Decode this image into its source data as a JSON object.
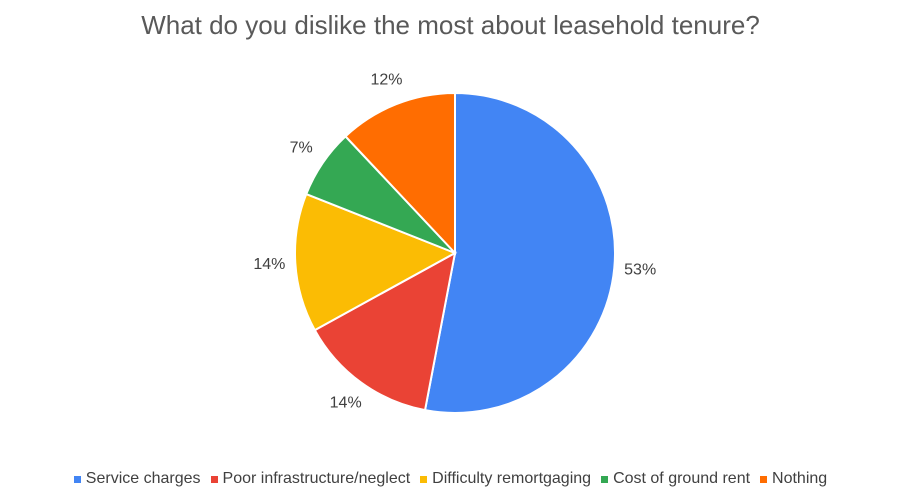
{
  "chart_data": {
    "type": "pie",
    "title": "What do you dislike the most about leasehold tenure?",
    "categories": [
      "Service charges",
      "Poor infrastructure/neglect",
      "Difficulty remortgaging",
      "Cost of ground rent",
      "Nothing"
    ],
    "values": [
      53,
      14,
      14,
      7,
      12
    ],
    "data_labels": [
      "53%",
      "14%",
      "14%",
      "7%",
      "12%"
    ],
    "colors": [
      "#4285F4",
      "#EA4335",
      "#FBBC04",
      "#34A853",
      "#FF6D01"
    ],
    "legend_position": "bottom",
    "start_angle": "12 o'clock",
    "direction": "clockwise"
  }
}
